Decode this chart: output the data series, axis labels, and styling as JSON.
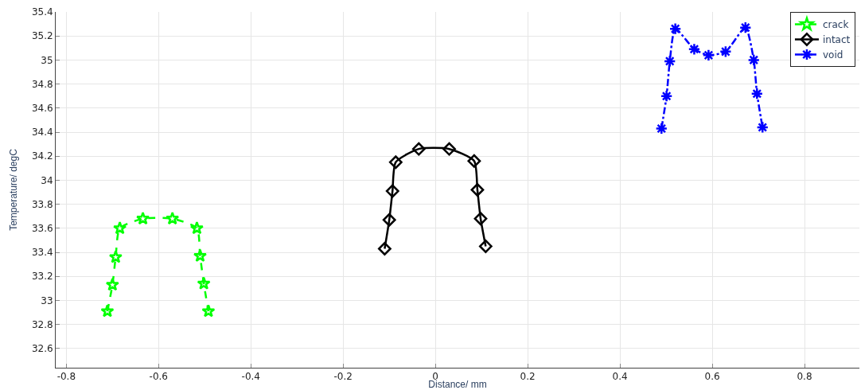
{
  "chart_data": {
    "type": "line",
    "xlabel": "Distance/ mm",
    "ylabel": "Temperature/ degC",
    "xlim": [
      -0.823,
      0.919
    ],
    "xticks": [
      -0.8,
      -0.6,
      -0.4,
      -0.2,
      0,
      0.2,
      0.4,
      0.6,
      0.8
    ],
    "ylim": [
      32.44,
      35.4
    ],
    "yticks": [
      32.6,
      32.8,
      33,
      33.2,
      33.4,
      33.6,
      33.8,
      34,
      34.2,
      34.4,
      34.6,
      34.8,
      35,
      35.2,
      35.4
    ],
    "grid": true,
    "legend": "top right",
    "series": [
      {
        "name": "crack",
        "color": "#00ff00",
        "line_style": "dashed",
        "marker": "star",
        "x": [
          -0.711,
          -0.7,
          -0.693,
          -0.684,
          -0.634,
          -0.57,
          -0.517,
          -0.51,
          -0.502,
          -0.492
        ],
        "values": [
          32.91,
          33.13,
          33.36,
          33.6,
          33.68,
          33.68,
          33.6,
          33.37,
          33.14,
          32.91
        ]
      },
      {
        "name": "intact",
        "color": "#000000",
        "line_style": "solid",
        "marker": "diamond",
        "x": [
          -0.11,
          -0.1,
          -0.093,
          -0.086,
          -0.036,
          0.03,
          0.084,
          0.091,
          0.098,
          0.109
        ],
        "values": [
          33.43,
          33.67,
          33.91,
          34.15,
          34.26,
          34.26,
          34.16,
          33.92,
          33.68,
          33.45
        ]
      },
      {
        "name": "void",
        "color": "#0000ff",
        "line_style": "dashdot",
        "marker": "cross",
        "x": [
          0.49,
          0.501,
          0.508,
          0.52,
          0.561,
          0.592,
          0.629,
          0.672,
          0.69,
          0.697,
          0.709
        ],
        "values": [
          34.43,
          34.7,
          34.99,
          35.26,
          35.09,
          35.04,
          35.07,
          35.27,
          35.0,
          34.72,
          34.44
        ]
      }
    ]
  }
}
